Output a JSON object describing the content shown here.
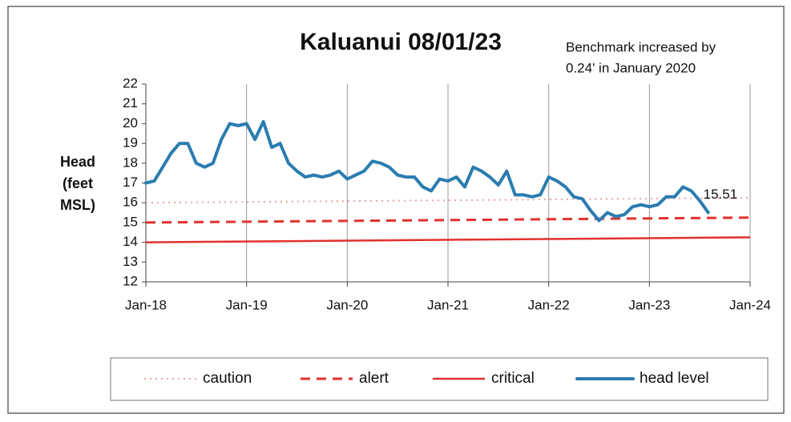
{
  "chart_data": {
    "type": "line",
    "title": "Kaluanui 08/01/23",
    "annotation": [
      "Benchmark increased by",
      "0.24' in January 2020"
    ],
    "ylabel": [
      "Head",
      "(feet",
      "MSL)"
    ],
    "xlim": [
      "2018-01",
      "2024-01"
    ],
    "xticks": [
      {
        "value": "2018-01",
        "label": "Jan-18"
      },
      {
        "value": "2019-01",
        "label": "Jan-19"
      },
      {
        "value": "2020-01",
        "label": "Jan-20"
      },
      {
        "value": "2021-01",
        "label": "Jan-21"
      },
      {
        "value": "2022-01",
        "label": "Jan-22"
      },
      {
        "value": "2023-01",
        "label": "Jan-23"
      },
      {
        "value": "2024-01",
        "label": "Jan-24"
      }
    ],
    "ylim": [
      12,
      22
    ],
    "yticks": [
      12,
      13,
      14,
      15,
      16,
      17,
      18,
      19,
      20,
      21,
      22
    ],
    "grid": "x",
    "legend": "bottom",
    "series": [
      {
        "name": "caution",
        "color": "#e9a3a3",
        "style": "dotted",
        "x": [
          "2018-01",
          "2024-01"
        ],
        "values": [
          16.0,
          16.25
        ]
      },
      {
        "name": "alert",
        "color": "#e2312d",
        "style": "dashed",
        "x": [
          "2018-01",
          "2024-01"
        ],
        "values": [
          15.0,
          15.25
        ]
      },
      {
        "name": "critical",
        "color": "#e2312d",
        "style": "solid",
        "x": [
          "2018-01",
          "2024-01"
        ],
        "values": [
          14.0,
          14.25
        ]
      },
      {
        "name": "head level",
        "color": "#2a7cb0",
        "style": "thick",
        "x": [
          "2018-01",
          "2018-02",
          "2018-03",
          "2018-04",
          "2018-05",
          "2018-06",
          "2018-07",
          "2018-08",
          "2018-09",
          "2018-10",
          "2018-11",
          "2018-12",
          "2019-01",
          "2019-02",
          "2019-03",
          "2019-04",
          "2019-05",
          "2019-06",
          "2019-07",
          "2019-08",
          "2019-09",
          "2019-10",
          "2019-11",
          "2019-12",
          "2020-01",
          "2020-02",
          "2020-03",
          "2020-04",
          "2020-05",
          "2020-06",
          "2020-07",
          "2020-08",
          "2020-09",
          "2020-10",
          "2020-11",
          "2020-12",
          "2021-01",
          "2021-02",
          "2021-03",
          "2021-04",
          "2021-05",
          "2021-06",
          "2021-07",
          "2021-08",
          "2021-09",
          "2021-10",
          "2021-11",
          "2021-12",
          "2022-01",
          "2022-02",
          "2022-03",
          "2022-04",
          "2022-05",
          "2022-06",
          "2022-07",
          "2022-08",
          "2022-09",
          "2022-10",
          "2022-11",
          "2022-12",
          "2023-01",
          "2023-02",
          "2023-03",
          "2023-04",
          "2023-05",
          "2023-06",
          "2023-07",
          "2023-08"
        ],
        "values": [
          17.0,
          17.1,
          17.8,
          18.5,
          19.0,
          19.0,
          18.0,
          17.8,
          18.0,
          19.2,
          20.0,
          19.9,
          20.0,
          19.2,
          20.1,
          18.8,
          19.0,
          18.0,
          17.6,
          17.3,
          17.4,
          17.3,
          17.4,
          17.6,
          17.2,
          17.4,
          17.6,
          18.1,
          18.0,
          17.8,
          17.4,
          17.3,
          17.3,
          16.8,
          16.6,
          17.2,
          17.1,
          17.3,
          16.8,
          17.8,
          17.6,
          17.3,
          16.9,
          17.6,
          16.4,
          16.4,
          16.3,
          16.4,
          17.3,
          17.1,
          16.8,
          16.3,
          16.2,
          15.6,
          15.1,
          15.5,
          15.3,
          15.4,
          15.8,
          15.9,
          15.8,
          15.9,
          16.3,
          16.3,
          16.8,
          16.6,
          16.1,
          15.51
        ]
      }
    ]
  }
}
